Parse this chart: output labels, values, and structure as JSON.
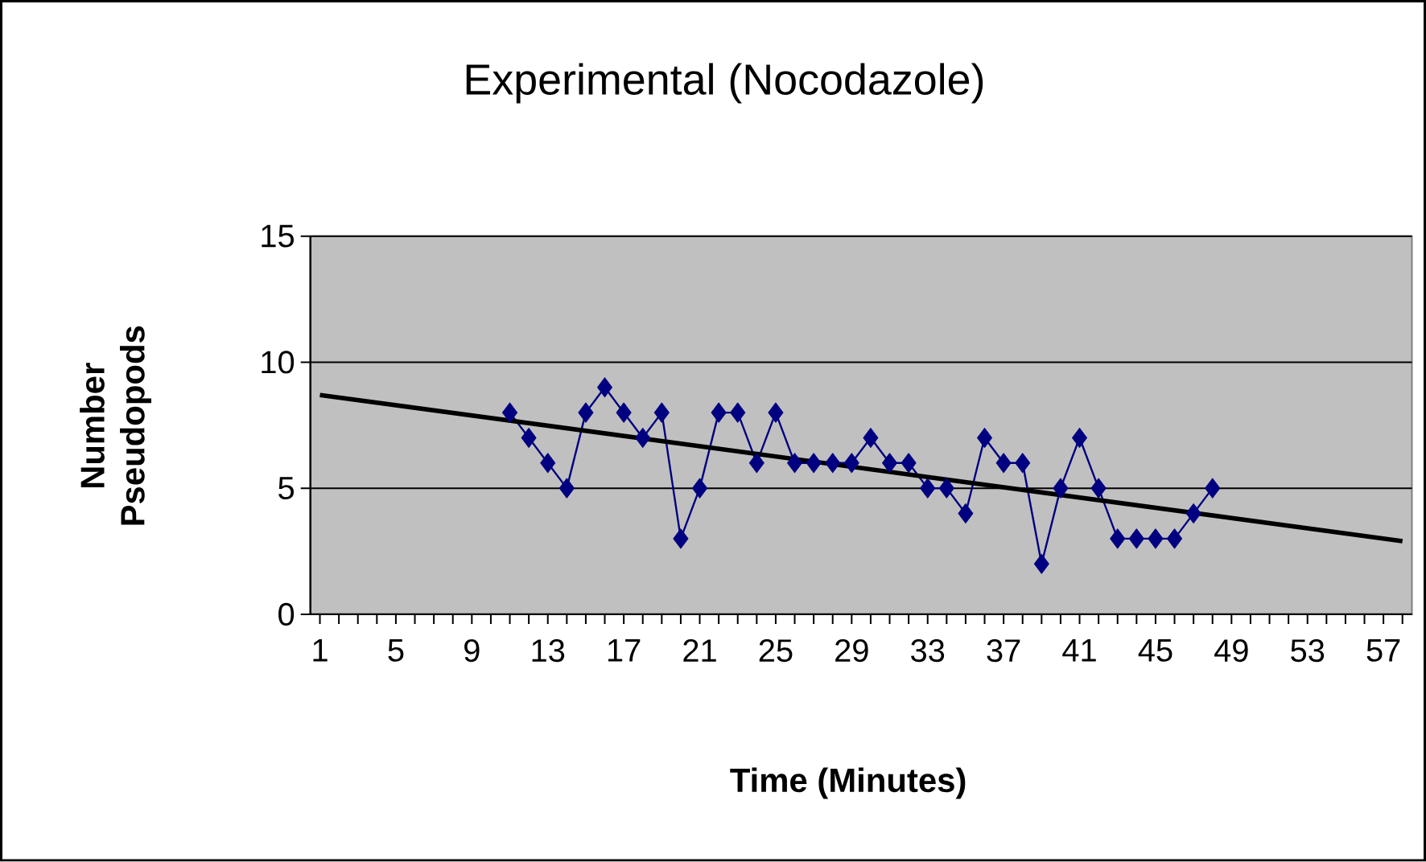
{
  "chart_data": {
    "type": "line",
    "title": "Experimental (Nocodazole)",
    "xlabel": "Time (Minutes)",
    "ylabel": "Number Pseudopods",
    "xlim": [
      0.5,
      58.5
    ],
    "xticks": [
      1,
      {
        "value": 2,
        "label": null
      },
      {
        "value": 3,
        "label": null
      },
      {
        "value": 4,
        "label": null
      },
      5,
      {
        "value": 6,
        "label": null
      },
      {
        "value": 7,
        "label": null
      },
      {
        "value": 8,
        "label": null
      },
      9,
      {
        "value": 10,
        "label": null
      },
      {
        "value": 11,
        "label": null
      },
      {
        "value": 12,
        "label": null
      },
      13,
      {
        "value": 14,
        "label": null
      },
      {
        "value": 15,
        "label": null
      },
      {
        "value": 16,
        "label": null
      },
      17,
      {
        "value": 18,
        "label": null
      },
      {
        "value": 19,
        "label": null
      },
      {
        "value": 20,
        "label": null
      },
      21,
      {
        "value": 22,
        "label": null
      },
      {
        "value": 23,
        "label": null
      },
      {
        "value": 24,
        "label": null
      },
      25,
      {
        "value": 26,
        "label": null
      },
      {
        "value": 27,
        "label": null
      },
      {
        "value": 28,
        "label": null
      },
      29,
      {
        "value": 30,
        "label": null
      },
      {
        "value": 31,
        "label": null
      },
      {
        "value": 32,
        "label": null
      },
      33,
      {
        "value": 34,
        "label": null
      },
      {
        "value": 35,
        "label": null
      },
      {
        "value": 36,
        "label": null
      },
      37,
      {
        "value": 38,
        "label": null
      },
      {
        "value": 39,
        "label": null
      },
      {
        "value": 40,
        "label": null
      },
      41,
      {
        "value": 42,
        "label": null
      },
      {
        "value": 43,
        "label": null
      },
      {
        "value": 44,
        "label": null
      },
      45,
      {
        "value": 46,
        "label": null
      },
      {
        "value": 47,
        "label": null
      },
      {
        "value": 48,
        "label": null
      },
      49,
      {
        "value": 50,
        "label": null
      },
      {
        "value": 51,
        "label": null
      },
      {
        "value": 52,
        "label": null
      },
      53,
      {
        "value": 54,
        "label": null
      },
      {
        "value": 55,
        "label": null
      },
      {
        "value": 56,
        "label": null
      },
      57,
      {
        "value": 58,
        "label": null
      }
    ],
    "ylim": [
      0,
      15
    ],
    "yticks": [
      0,
      5,
      10,
      15
    ],
    "grid": "y",
    "marker": "diamond",
    "series": [
      {
        "color": "#000080",
        "x": [
          11,
          12,
          13,
          14,
          15,
          16,
          17,
          18,
          19,
          20,
          21,
          22,
          23,
          24,
          25,
          26,
          27,
          28,
          29,
          30,
          31,
          32,
          33,
          34,
          35,
          36,
          37,
          38,
          39,
          40,
          41,
          42,
          43,
          44,
          45,
          46,
          47,
          48
        ],
        "values": [
          8,
          7,
          6,
          5,
          8,
          9,
          8,
          7,
          8,
          3,
          5,
          8,
          8,
          6,
          8,
          6,
          6,
          6,
          6,
          7,
          6,
          6,
          5,
          5,
          4,
          7,
          6,
          6,
          2,
          5,
          7,
          5,
          3,
          3,
          3,
          3,
          4,
          5
        ]
      },
      {
        "color": "#000000",
        "marker": "none",
        "x": [
          1,
          58
        ],
        "values": [
          8.7,
          2.9
        ]
      }
    ]
  }
}
